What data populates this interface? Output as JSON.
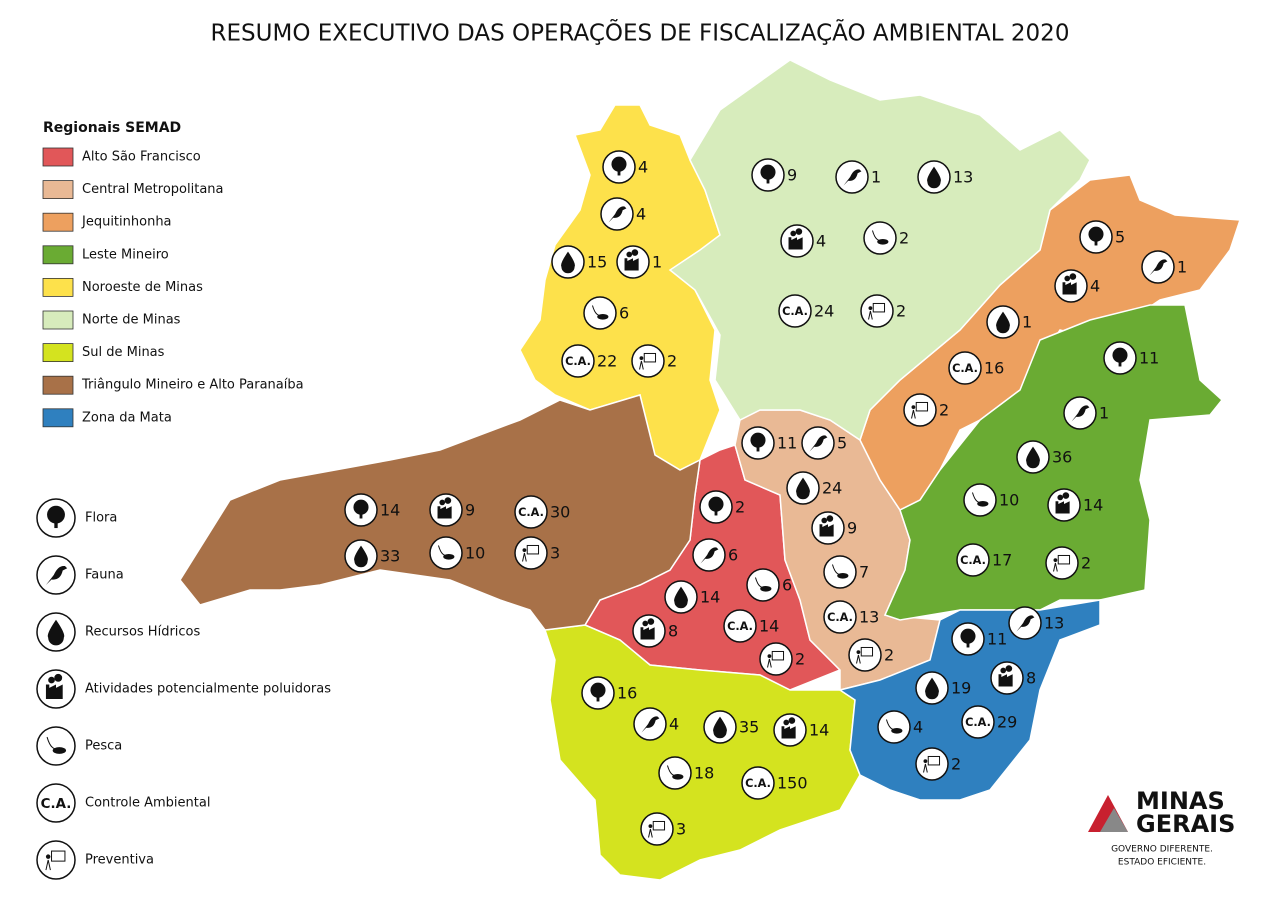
{
  "title": "RESUMO EXECUTIVO DAS OPERAÇÕES DE FISCALIZAÇÃO AMBIENTAL 2020",
  "legend_title": "Regionais SEMAD",
  "regions": [
    {
      "name": "Alto São Francisco",
      "color": "#e15759",
      "counts": {
        "flora": 2,
        "fauna": 6,
        "pesca": 6,
        "hidricos": 14,
        "ca": 14,
        "poluidoras": 8,
        "preventiva": 2
      }
    },
    {
      "name": "Central Metropolitana",
      "color": "#e9b995",
      "counts": {
        "flora": 11,
        "fauna": 5,
        "hidricos": 24,
        "poluidoras": 9,
        "pesca": 7,
        "ca": 13,
        "preventiva": 2
      }
    },
    {
      "name": "Jequitinhonha",
      "color": "#eda05f",
      "counts": {
        "flora": 5,
        "fauna": 1,
        "poluidoras": 4,
        "hidricos": 1,
        "ca": 16,
        "preventiva": 2
      }
    },
    {
      "name": "Leste Mineiro",
      "color": "#6aab33",
      "counts": {
        "flora": 11,
        "fauna": 1,
        "hidricos": 36,
        "pesca": 10,
        "poluidoras": 14,
        "ca": 17,
        "preventiva": 2
      }
    },
    {
      "name": "Noroeste de Minas",
      "color": "#fde14b",
      "counts": {
        "flora": 4,
        "fauna": 4,
        "hidricos": 15,
        "poluidoras": 1,
        "pesca": 6,
        "ca": 22,
        "preventiva": 2
      }
    },
    {
      "name": "Norte de Minas",
      "color": "#d7ecbc",
      "counts": {
        "flora": 9,
        "fauna": 1,
        "hidricos": 13,
        "poluidoras": 4,
        "pesca": 2,
        "ca": 24,
        "preventiva": 2
      }
    },
    {
      "name": "Sul de Minas",
      "color": "#d4e31f",
      "counts": {
        "flora": 16,
        "fauna": 4,
        "hidricos": 35,
        "poluidoras": 14,
        "pesca": 18,
        "ca": 150,
        "preventiva": 3
      }
    },
    {
      "name": "Triângulo Mineiro e Alto Paranaíba",
      "color": "#a87148",
      "counts": {
        "flora": 14,
        "poluidoras": 9,
        "ca": 30,
        "hidricos": 33,
        "pesca": 10,
        "preventiva": 3
      }
    },
    {
      "name": "Zona da Mata",
      "color": "#2f80bf",
      "counts": {
        "flora": 11,
        "fauna": 13,
        "hidricos": 19,
        "poluidoras": 8,
        "pesca": 4,
        "ca": 29,
        "preventiva": 2
      }
    }
  ],
  "icon_legend": [
    {
      "key": "flora",
      "label": "Flora"
    },
    {
      "key": "fauna",
      "label": "Fauna"
    },
    {
      "key": "hidricos",
      "label": "Recursos Hídricos"
    },
    {
      "key": "poluidoras",
      "label": "Atividades potencialmente poluidoras"
    },
    {
      "key": "pesca",
      "label": "Pesca"
    },
    {
      "key": "ca",
      "label": "Controle Ambiental",
      "symbol": "C.A."
    },
    {
      "key": "preventiva",
      "label": "Preventiva"
    }
  ],
  "logo": {
    "line1": "MINAS",
    "line2": "GERAIS",
    "tagline1": "GOVERNO DIFERENTE.",
    "tagline2": "ESTADO EFICIENTE."
  }
}
